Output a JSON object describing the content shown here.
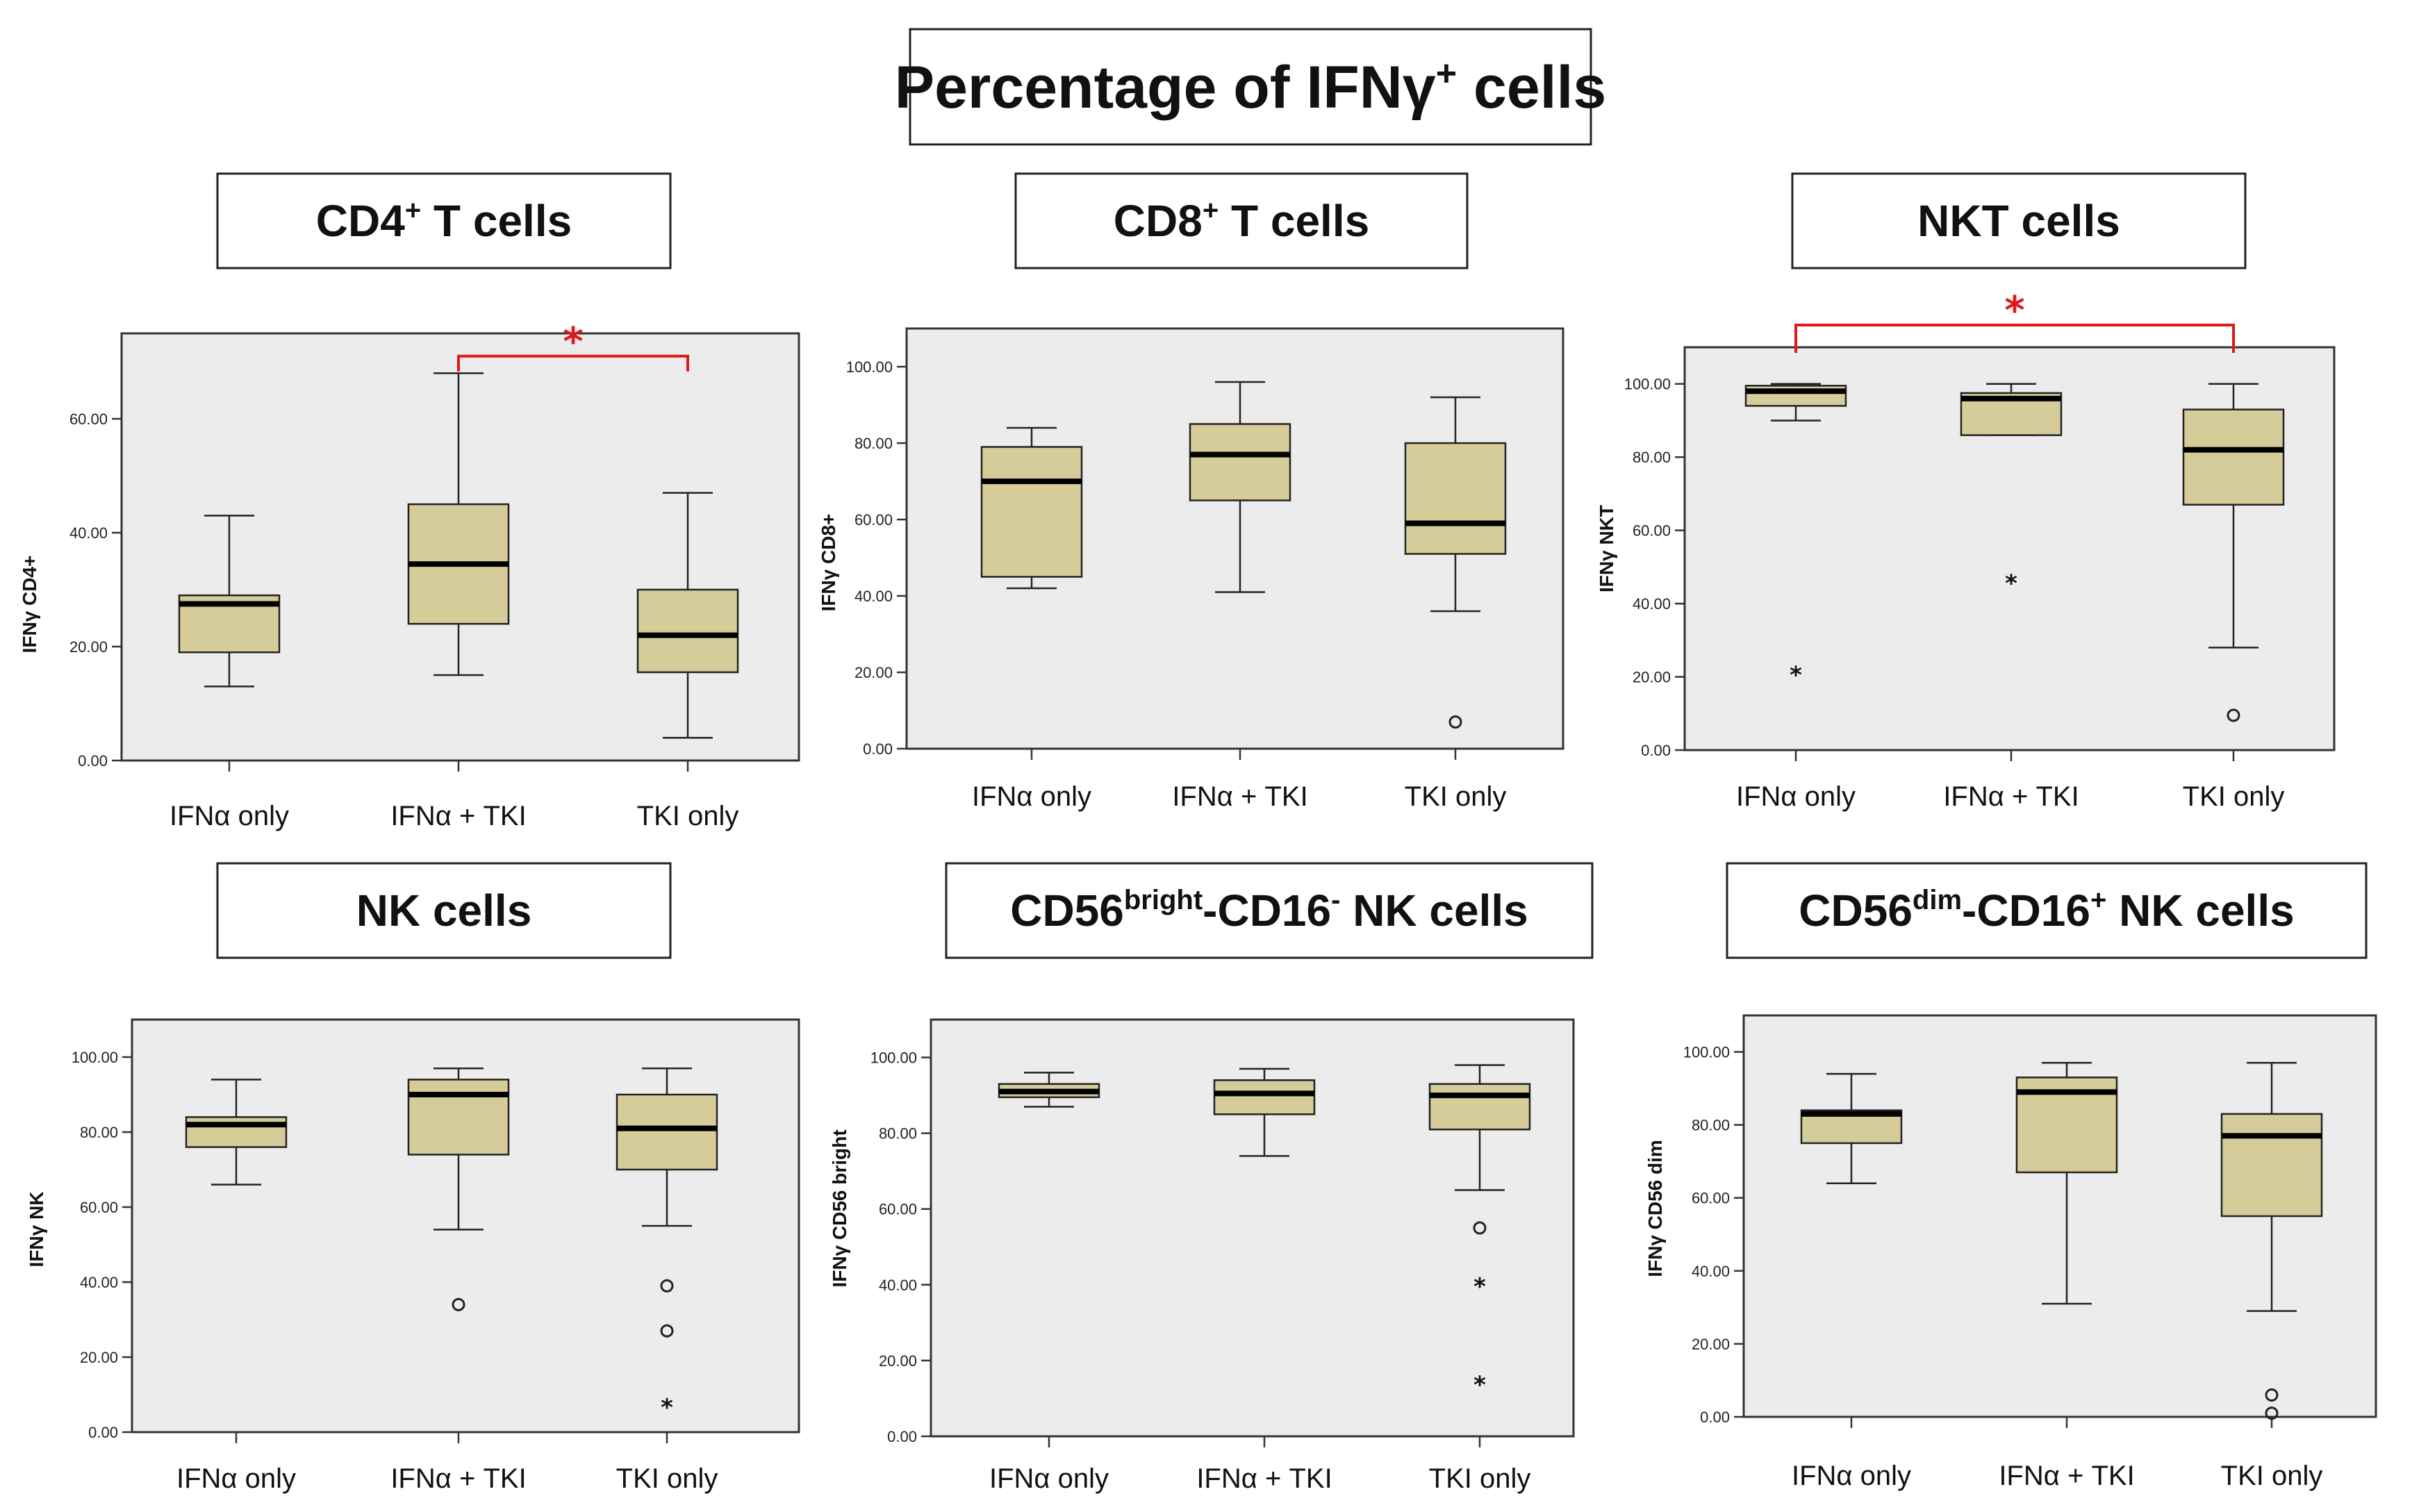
{
  "main_title": {
    "prefix": "Percentage of IFNγ",
    "sup": "+",
    "suffix": " cells"
  },
  "colors": {
    "box_fill": "#d6cc99",
    "plot_bg": "#ececec",
    "significance": "#e01818",
    "text": "#111111"
  },
  "chart_data": [
    {
      "type": "box",
      "title": {
        "prefix": "CD4",
        "sup": "+",
        "suffix": " T cells"
      },
      "ylabel": "IFNγ CD4+",
      "ylim": [
        0,
        75
      ],
      "yticks": [
        "0.00",
        "20.00",
        "40.00",
        "60.00"
      ],
      "categories": [
        "IFNα only",
        "IFNα + TKI",
        "TKI only"
      ],
      "boxes": [
        {
          "category": "IFNα only",
          "whisker_low": 13,
          "q1": 19,
          "median": 27.5,
          "q3": 29,
          "whisker_high": 43,
          "outliers": [],
          "extremes": []
        },
        {
          "category": "IFNα + TKI",
          "whisker_low": 15,
          "q1": 24,
          "median": 34.5,
          "q3": 45,
          "whisker_high": 68,
          "outliers": [],
          "extremes": []
        },
        {
          "category": "TKI only",
          "whisker_low": 4,
          "q1": 15.5,
          "median": 22,
          "q3": 30,
          "whisker_high": 47,
          "outliers": [],
          "extremes": []
        }
      ],
      "significance": [
        {
          "from": "IFNα + TKI",
          "to": "TKI only",
          "label": "*"
        }
      ]
    },
    {
      "type": "box",
      "title": {
        "prefix": "CD8",
        "sup": "+",
        "suffix": " T cells"
      },
      "ylabel": "IFNγ CD8+",
      "ylim": [
        0,
        110
      ],
      "yticks": [
        "0.00",
        "20.00",
        "40.00",
        "60.00",
        "80.00",
        "100.00"
      ],
      "categories": [
        "IFNα only",
        "IFNα + TKI",
        "TKI only"
      ],
      "boxes": [
        {
          "category": "IFNα only",
          "whisker_low": 42,
          "q1": 45,
          "median": 70,
          "q3": 79,
          "whisker_high": 84,
          "outliers": [],
          "extremes": []
        },
        {
          "category": "IFNα + TKI",
          "whisker_low": 41,
          "q1": 65,
          "median": 77,
          "q3": 85,
          "whisker_high": 96,
          "outliers": [],
          "extremes": []
        },
        {
          "category": "TKI only",
          "whisker_low": 36,
          "q1": 51,
          "median": 59,
          "q3": 80,
          "whisker_high": 92,
          "outliers": [
            7
          ],
          "extremes": []
        }
      ],
      "significance": []
    },
    {
      "type": "box",
      "title": {
        "prefix": "NKT cells",
        "sup": "",
        "suffix": ""
      },
      "ylabel": "IFNγ NKT",
      "ylim": [
        0,
        110
      ],
      "yticks": [
        "0.00",
        "20.00",
        "40.00",
        "60.00",
        "80.00",
        "100.00"
      ],
      "categories": [
        "IFNα only",
        "IFNα + TKI",
        "TKI only"
      ],
      "boxes": [
        {
          "category": "IFNα only",
          "whisker_low": 90,
          "q1": 94,
          "median": 98,
          "q3": 99.5,
          "whisker_high": 100,
          "outliers": [],
          "extremes": [
            21
          ]
        },
        {
          "category": "IFNα + TKI",
          "whisker_low": 86,
          "q1": 86,
          "median": 96,
          "q3": 97.5,
          "whisker_high": 100,
          "outliers": [],
          "extremes": [
            46
          ]
        },
        {
          "category": "TKI only",
          "whisker_low": 28,
          "q1": 67,
          "median": 82,
          "q3": 93,
          "whisker_high": 100,
          "outliers": [
            9.5
          ],
          "extremes": []
        }
      ],
      "significance": [
        {
          "from": "IFNα only",
          "to": "TKI only",
          "label": "*"
        }
      ]
    },
    {
      "type": "box",
      "title": {
        "prefix": "NK cells",
        "sup": "",
        "suffix": ""
      },
      "ylabel": "IFNγ NK",
      "ylim": [
        0,
        110
      ],
      "yticks": [
        "0.00",
        "20.00",
        "40.00",
        "60.00",
        "80.00",
        "100.00"
      ],
      "categories": [
        "IFNα only",
        "IFNα + TKI",
        "TKI only"
      ],
      "boxes": [
        {
          "category": "IFNα only",
          "whisker_low": 66,
          "q1": 76,
          "median": 82,
          "q3": 84,
          "whisker_high": 94,
          "outliers": [],
          "extremes": []
        },
        {
          "category": "IFNα + TKI",
          "whisker_low": 54,
          "q1": 74,
          "median": 90,
          "q3": 94,
          "whisker_high": 97,
          "outliers": [
            34
          ],
          "extremes": []
        },
        {
          "category": "TKI only",
          "whisker_low": 55,
          "q1": 70,
          "median": 81,
          "q3": 90,
          "whisker_high": 97,
          "outliers": [
            39,
            27
          ],
          "extremes": [
            7
          ]
        }
      ],
      "significance": []
    },
    {
      "type": "box",
      "title": {
        "prefix": "CD56",
        "sup": "bright",
        "suffix": "-CD16",
        "sup2": "-",
        "suffix2": " NK cells"
      },
      "ylabel": "IFNγ CD56 bright",
      "ylim": [
        0,
        110
      ],
      "yticks": [
        "0.00",
        "20.00",
        "40.00",
        "60.00",
        "80.00",
        "100.00"
      ],
      "categories": [
        "IFNα only",
        "IFNα + TKI",
        "TKI only"
      ],
      "boxes": [
        {
          "category": "IFNα only",
          "whisker_low": 87,
          "q1": 89.5,
          "median": 91,
          "q3": 93,
          "whisker_high": 96,
          "outliers": [],
          "extremes": []
        },
        {
          "category": "IFNα + TKI",
          "whisker_low": 74,
          "q1": 85,
          "median": 90.5,
          "q3": 94,
          "whisker_high": 97,
          "outliers": [],
          "extremes": []
        },
        {
          "category": "TKI only",
          "whisker_low": 65,
          "q1": 81,
          "median": 90,
          "q3": 93,
          "whisker_high": 98,
          "outliers": [
            55
          ],
          "extremes": [
            40,
            14
          ]
        }
      ],
      "significance": []
    },
    {
      "type": "box",
      "title": {
        "prefix": "CD56",
        "sup": "dim",
        "suffix": "-CD16",
        "sup2": "+",
        "suffix2": " NK cells"
      },
      "ylabel": "IFNγ CD56 dim",
      "ylim": [
        0,
        110
      ],
      "yticks": [
        "0.00",
        "20.00",
        "40.00",
        "60.00",
        "80.00",
        "100.00"
      ],
      "categories": [
        "IFNα only",
        "IFNα + TKI",
        "TKI only"
      ],
      "boxes": [
        {
          "category": "IFNα only",
          "whisker_low": 64,
          "q1": 75,
          "median": 83,
          "q3": 84,
          "whisker_high": 94,
          "outliers": [],
          "extremes": []
        },
        {
          "category": "IFNα + TKI",
          "whisker_low": 31,
          "q1": 67,
          "median": 89,
          "q3": 93,
          "whisker_high": 97,
          "outliers": [],
          "extremes": []
        },
        {
          "category": "TKI only",
          "whisker_low": 29,
          "q1": 55,
          "median": 77,
          "q3": 83,
          "whisker_high": 97,
          "outliers": [
            6,
            1
          ],
          "extremes": []
        }
      ],
      "significance": []
    }
  ]
}
